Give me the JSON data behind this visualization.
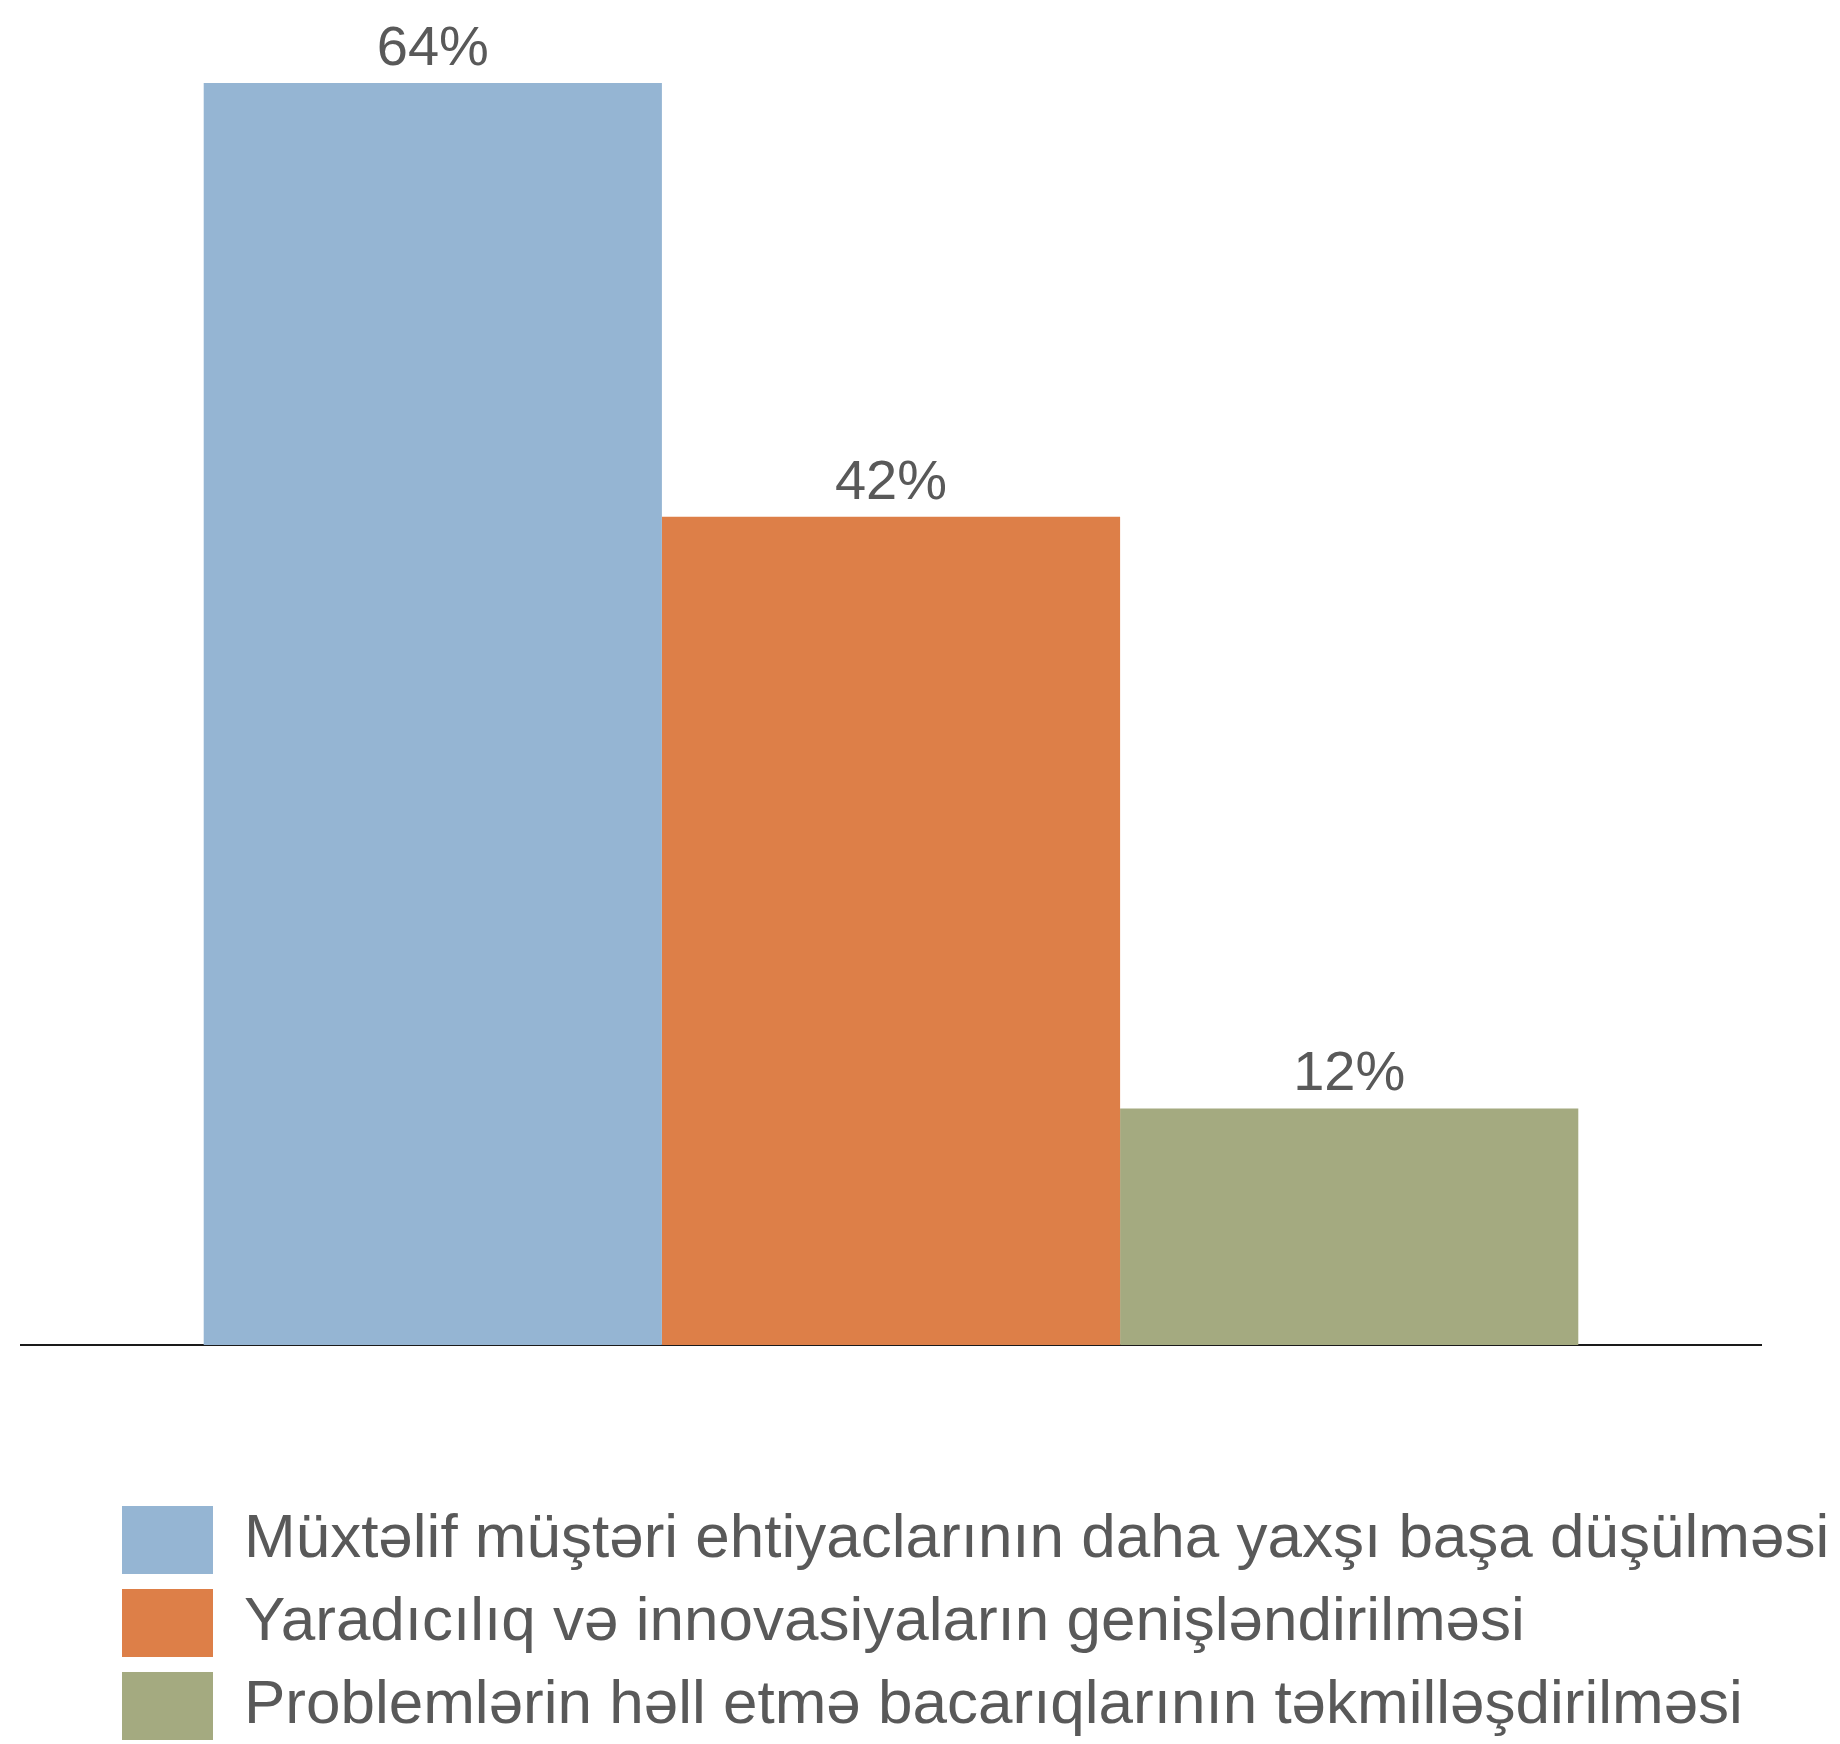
{
  "chart_data": {
    "type": "bar",
    "categories": [
      null
    ],
    "series": [
      {
        "name": "Müxtəlif müştəri ehtiyaclarının daha yaxşı başa düşülməsi",
        "color": "#95b5d3",
        "values": [
          64
        ],
        "value_labels": [
          "64%"
        ]
      },
      {
        "name": "Yaradıcılıq və innovasiyaların genişləndirilməsi",
        "color": "#dd7f48",
        "values": [
          42
        ],
        "value_labels": [
          "42%"
        ]
      },
      {
        "name": "Problemlərin həll etmə bacarıqlarının təkmilləşdirilməsi",
        "color": "#a4aa80",
        "values": [
          12
        ],
        "value_labels": [
          "12%"
        ]
      }
    ],
    "legend": "bottom",
    "tick_labels": false
  }
}
